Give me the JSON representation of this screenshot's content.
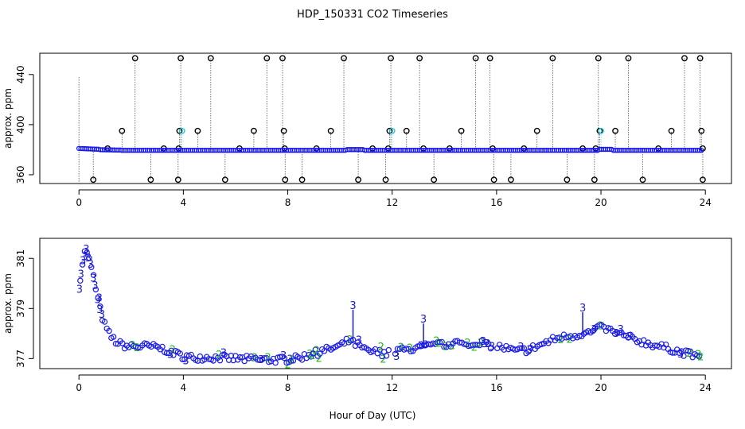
{
  "figure": {
    "title": "HDP_150331  CO2 Timeseries",
    "xlabel": "Hour of Day (UTC)"
  },
  "colors": {
    "raw": "#000000",
    "valid": "#1a1aee",
    "flagged": "#22ccdd",
    "code2": "#22bb22",
    "code3": "#1a1acc"
  },
  "chart_data": [
    {
      "type": "scatter",
      "title": "",
      "xlabel": "",
      "ylabel": "approx. ppm",
      "xlim": [
        -1.5,
        25
      ],
      "ylim": [
        353,
        457
      ],
      "xticks": [
        "0",
        "4",
        "8",
        "12",
        "16",
        "20",
        "24"
      ],
      "yticks": [
        "360",
        "400",
        "440"
      ],
      "baseline": 380,
      "outliers_high": [
        2.15,
        3.9,
        5.05,
        7.2,
        7.8,
        10.15,
        11.95,
        13.05,
        15.2,
        15.75,
        18.15,
        19.9,
        21.05,
        23.2,
        23.8
      ],
      "outliers_high_value": 453,
      "outliers_mid": [
        1.65,
        3.85,
        4.55,
        6.7,
        7.85,
        9.65,
        11.9,
        12.55,
        14.65,
        17.55,
        19.95,
        20.55,
        22.7,
        23.85
      ],
      "outliers_mid_value": 395,
      "outliers_mid_cyan": [
        3.95,
        12.0,
        20.0
      ],
      "outliers_low": [
        0.55,
        2.75,
        3.8,
        5.6,
        7.9,
        8.55,
        10.7,
        11.75,
        13.6,
        15.9,
        16.55,
        18.7,
        19.75,
        21.6,
        23.9
      ],
      "outliers_low_value": 356,
      "outliers_380": [
        1.1,
        3.25,
        3.82,
        6.15,
        7.88,
        9.1,
        11.25,
        11.85,
        13.2,
        14.2,
        15.85,
        17.05,
        19.3,
        19.8,
        22.2,
        23.9
      ],
      "outliers_380_value": 381
    },
    {
      "type": "scatter",
      "title": "",
      "xlabel": "",
      "ylabel": "approx. ppm",
      "xlim": [
        -1.5,
        25
      ],
      "ylim": [
        376.6,
        381.8
      ],
      "xticks": [
        "0",
        "4",
        "8",
        "12",
        "16",
        "20",
        "24"
      ],
      "yticks": [
        "377",
        "379",
        "381"
      ],
      "marker_3": "3",
      "marker_2": "2",
      "anchors": [
        [
          0.0,
          379.9
        ],
        [
          0.1,
          380.6
        ],
        [
          0.2,
          381.2
        ],
        [
          0.3,
          381.3
        ],
        [
          0.4,
          380.9
        ],
        [
          0.55,
          380.3
        ],
        [
          0.7,
          379.5
        ],
        [
          0.85,
          378.8
        ],
        [
          1.0,
          378.3
        ],
        [
          1.2,
          377.9
        ],
        [
          1.5,
          377.6
        ],
        [
          2.0,
          377.45
        ],
        [
          2.5,
          377.5
        ],
        [
          3.0,
          377.45
        ],
        [
          3.5,
          377.3
        ],
        [
          3.8,
          377.15
        ],
        [
          4.2,
          377.05
        ],
        [
          5.0,
          377.05
        ],
        [
          6.0,
          377.0
        ],
        [
          7.0,
          376.95
        ],
        [
          7.8,
          376.95
        ],
        [
          8.3,
          377.0
        ],
        [
          9.0,
          377.2
        ],
        [
          9.5,
          377.35
        ],
        [
          10.0,
          377.5
        ],
        [
          10.3,
          377.7
        ],
        [
          10.7,
          377.55
        ],
        [
          11.0,
          377.3
        ],
        [
          11.5,
          377.25
        ],
        [
          11.8,
          377.2
        ],
        [
          12.2,
          377.3
        ],
        [
          13.0,
          377.4
        ],
        [
          13.5,
          377.5
        ],
        [
          14.0,
          377.55
        ],
        [
          14.5,
          377.65
        ],
        [
          14.9,
          377.45
        ],
        [
          15.3,
          377.65
        ],
        [
          15.7,
          377.55
        ],
        [
          16.2,
          377.45
        ],
        [
          16.7,
          377.3
        ],
        [
          17.2,
          377.35
        ],
        [
          17.8,
          377.6
        ],
        [
          18.3,
          377.8
        ],
        [
          18.8,
          377.9
        ],
        [
          19.3,
          378.0
        ],
        [
          19.7,
          378.05
        ],
        [
          20.0,
          378.25
        ],
        [
          20.4,
          378.1
        ],
        [
          20.9,
          377.9
        ],
        [
          21.5,
          377.7
        ],
        [
          22.2,
          377.5
        ],
        [
          22.8,
          377.35
        ],
        [
          23.3,
          377.2
        ],
        [
          23.8,
          377.0
        ]
      ],
      "spikes": [
        [
          10.5,
          378.95
        ],
        [
          13.2,
          378.4
        ],
        [
          19.3,
          378.85
        ]
      ]
    }
  ]
}
